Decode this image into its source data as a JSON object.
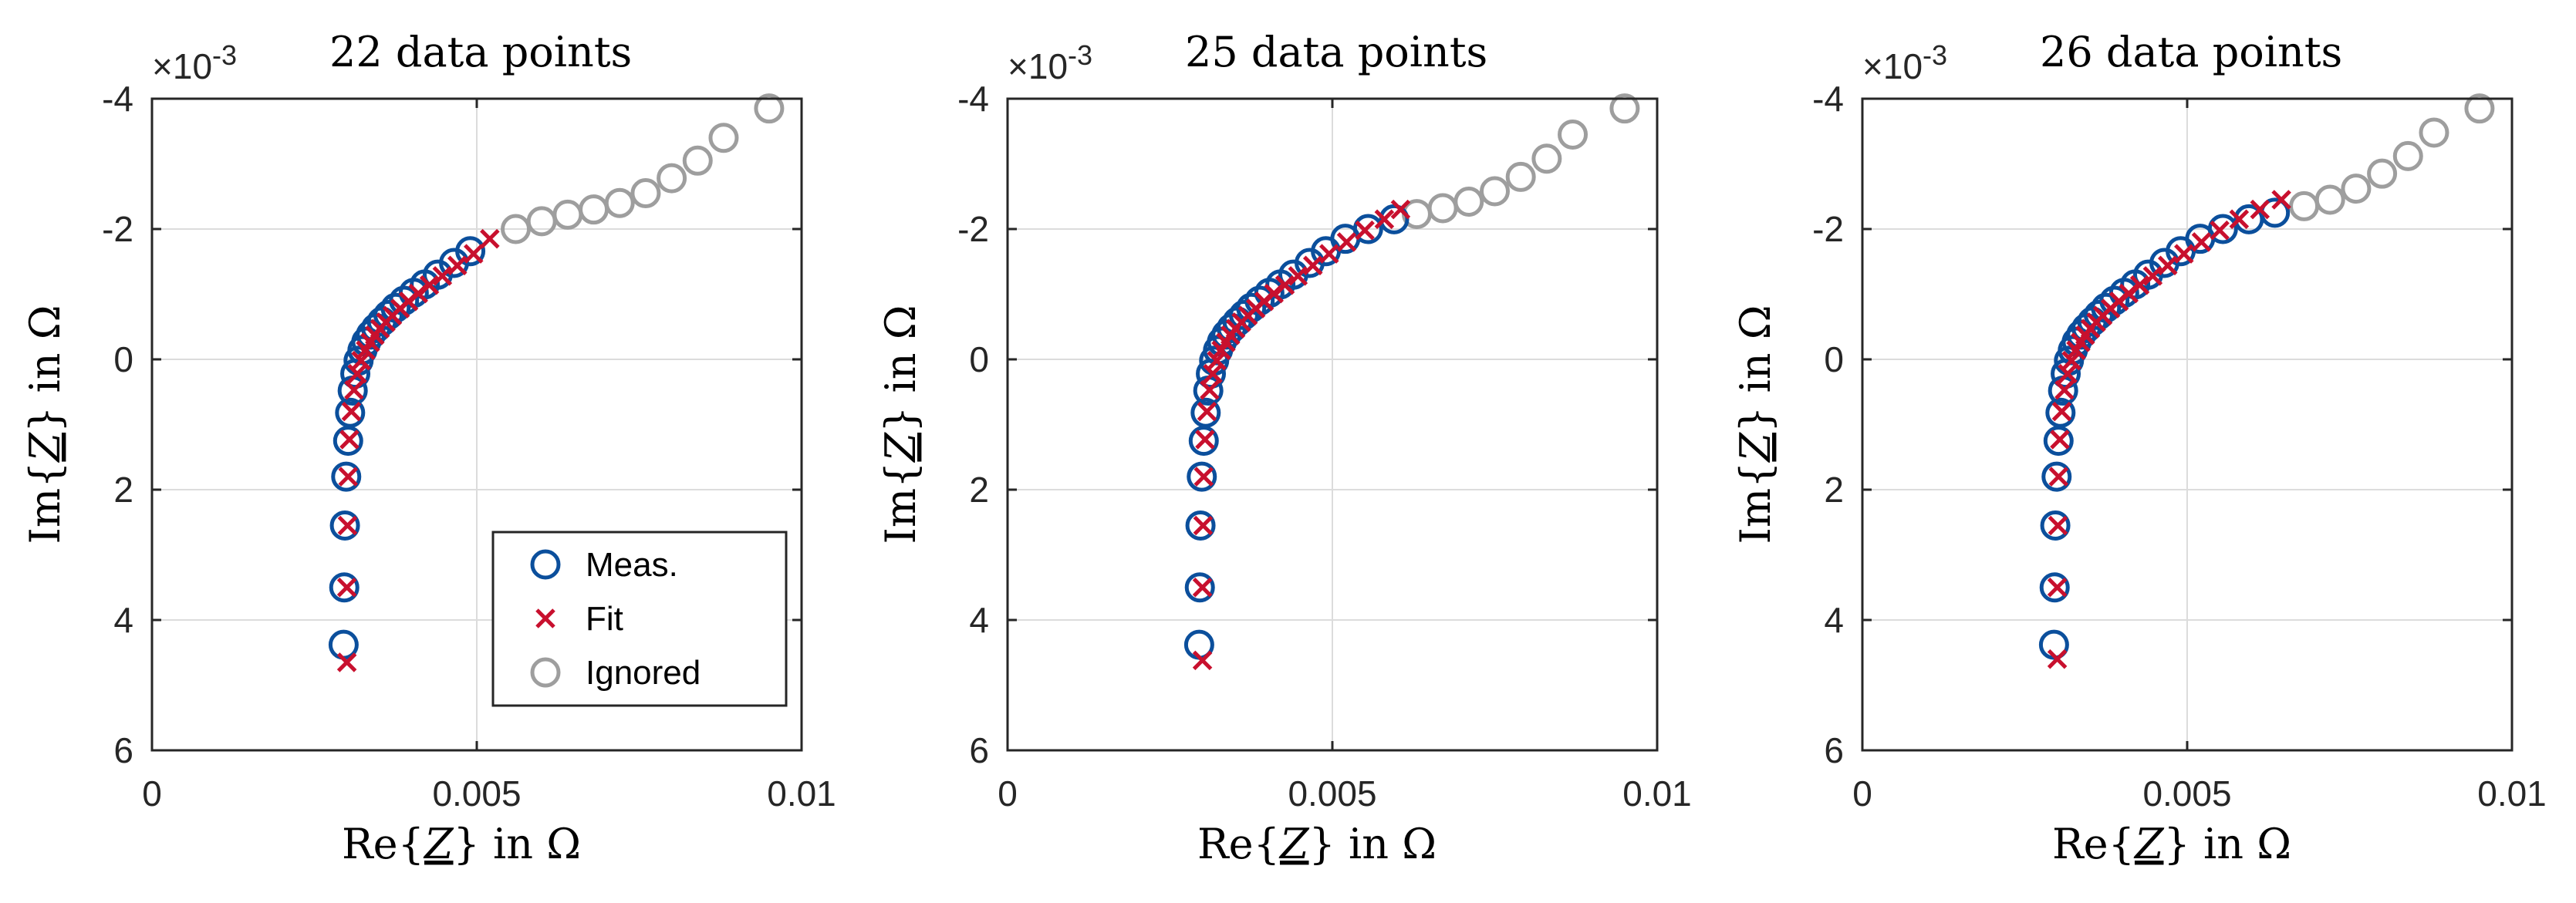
{
  "colors": {
    "measured": "#0b4f9c",
    "fit": "#c8102e",
    "ignored": "#9e9e9e",
    "grid": "#dcdcdc",
    "axis": "#262626"
  },
  "chart_data": [
    {
      "type": "scatter",
      "title": "22 data points",
      "xlabel": "Re{Z} in Ω",
      "ylabel": "Im{Z} in Ω",
      "exponent_label": "×10",
      "exponent_value": "-3",
      "xlim": [
        0,
        0.01
      ],
      "ylim": [
        -4,
        6
      ],
      "y_reversed": true,
      "x_ticks": [
        "0",
        "0.005",
        "0.01"
      ],
      "y_ticks": [
        "-4",
        "-2",
        "0",
        "2",
        "4",
        "6"
      ],
      "legend": {
        "position": "bottom-right",
        "entries": [
          "Meas.",
          "Fit",
          "Ignored"
        ]
      },
      "series": [
        {
          "name": "Meas.",
          "x": [
            0.00295,
            0.00296,
            0.00297,
            0.00299,
            0.00302,
            0.00305,
            0.00309,
            0.00313,
            0.00318,
            0.00324,
            0.0033,
            0.00337,
            0.00345,
            0.00354,
            0.00364,
            0.00375,
            0.00388,
            0.00403,
            0.0042,
            0.0044,
            0.00465,
            0.0049
          ],
          "y": [
            4.38,
            3.5,
            2.55,
            1.8,
            1.25,
            0.82,
            0.48,
            0.22,
            0.02,
            -0.14,
            -0.27,
            -0.38,
            -0.48,
            -0.58,
            -0.68,
            -0.79,
            -0.9,
            -1.02,
            -1.15,
            -1.3,
            -1.48,
            -1.66
          ]
        },
        {
          "name": "Fit",
          "x": [
            0.003,
            0.003,
            0.00301,
            0.00302,
            0.00304,
            0.00307,
            0.00311,
            0.00316,
            0.00322,
            0.00329,
            0.00336,
            0.00343,
            0.00351,
            0.0036,
            0.0037,
            0.00382,
            0.00395,
            0.0041,
            0.00427,
            0.00447,
            0.0047,
            0.00495,
            0.0052
          ],
          "y": [
            4.65,
            3.5,
            2.55,
            1.8,
            1.23,
            0.8,
            0.47,
            0.22,
            0.02,
            -0.14,
            -0.26,
            -0.37,
            -0.47,
            -0.57,
            -0.67,
            -0.78,
            -0.89,
            -1.01,
            -1.14,
            -1.28,
            -1.44,
            -1.62,
            -1.85
          ]
        },
        {
          "name": "Ignored",
          "x": [
            0.0056,
            0.006,
            0.0064,
            0.0068,
            0.0072,
            0.0076,
            0.008,
            0.0084,
            0.0088,
            0.0095
          ],
          "y": [
            -2.0,
            -2.12,
            -2.22,
            -2.3,
            -2.4,
            -2.55,
            -2.78,
            -3.05,
            -3.4,
            -3.85
          ]
        }
      ]
    },
    {
      "type": "scatter",
      "title": "25 data points",
      "xlabel": "Re{Z} in Ω",
      "ylabel": "Im{Z} in Ω",
      "exponent_label": "×10",
      "exponent_value": "-3",
      "xlim": [
        0,
        0.01
      ],
      "ylim": [
        -4,
        6
      ],
      "y_reversed": true,
      "x_ticks": [
        "0",
        "0.005",
        "0.01"
      ],
      "y_ticks": [
        "-4",
        "-2",
        "0",
        "2",
        "4",
        "6"
      ],
      "series": [
        {
          "name": "Meas.",
          "x": [
            0.00295,
            0.00296,
            0.00297,
            0.00299,
            0.00302,
            0.00305,
            0.00309,
            0.00313,
            0.00318,
            0.00324,
            0.0033,
            0.00337,
            0.00345,
            0.00354,
            0.00364,
            0.00375,
            0.00388,
            0.00403,
            0.0042,
            0.0044,
            0.00465,
            0.0049,
            0.0052,
            0.00555,
            0.00595
          ],
          "y": [
            4.38,
            3.5,
            2.55,
            1.8,
            1.25,
            0.82,
            0.48,
            0.22,
            0.02,
            -0.14,
            -0.27,
            -0.38,
            -0.48,
            -0.58,
            -0.68,
            -0.79,
            -0.9,
            -1.02,
            -1.15,
            -1.3,
            -1.48,
            -1.66,
            -1.85,
            -2.0,
            -2.15
          ]
        },
        {
          "name": "Fit",
          "x": [
            0.003,
            0.003,
            0.00301,
            0.00302,
            0.00304,
            0.00307,
            0.00311,
            0.00316,
            0.00322,
            0.00329,
            0.00336,
            0.00343,
            0.00351,
            0.0036,
            0.0037,
            0.00382,
            0.00395,
            0.0041,
            0.00427,
            0.00447,
            0.0047,
            0.00495,
            0.00522,
            0.0055,
            0.0058,
            0.00605
          ],
          "y": [
            4.62,
            3.5,
            2.55,
            1.8,
            1.23,
            0.8,
            0.47,
            0.22,
            0.02,
            -0.14,
            -0.26,
            -0.37,
            -0.47,
            -0.57,
            -0.67,
            -0.78,
            -0.89,
            -1.01,
            -1.14,
            -1.28,
            -1.44,
            -1.62,
            -1.8,
            -1.98,
            -2.15,
            -2.3
          ]
        },
        {
          "name": "Ignored",
          "x": [
            0.0063,
            0.0067,
            0.0071,
            0.0075,
            0.0079,
            0.0083,
            0.0087,
            0.0095
          ],
          "y": [
            -2.23,
            -2.32,
            -2.42,
            -2.58,
            -2.8,
            -3.08,
            -3.45,
            -3.85
          ]
        }
      ]
    },
    {
      "type": "scatter",
      "title": "26 data points",
      "xlabel": "Re{Z} in Ω",
      "ylabel": "Im{Z} in Ω",
      "exponent_label": "×10",
      "exponent_value": "-3",
      "xlim": [
        0,
        0.01
      ],
      "ylim": [
        -4,
        6
      ],
      "y_reversed": true,
      "x_ticks": [
        "0",
        "0.005",
        "0.01"
      ],
      "y_ticks": [
        "-4",
        "-2",
        "0",
        "2",
        "4",
        "6"
      ],
      "series": [
        {
          "name": "Meas.",
          "x": [
            0.00295,
            0.00296,
            0.00297,
            0.00299,
            0.00302,
            0.00305,
            0.00309,
            0.00313,
            0.00318,
            0.00324,
            0.0033,
            0.00337,
            0.00345,
            0.00354,
            0.00364,
            0.00375,
            0.00388,
            0.00403,
            0.0042,
            0.0044,
            0.00465,
            0.0049,
            0.0052,
            0.00555,
            0.00595,
            0.00635
          ],
          "y": [
            4.38,
            3.5,
            2.55,
            1.8,
            1.25,
            0.82,
            0.48,
            0.22,
            0.02,
            -0.14,
            -0.27,
            -0.38,
            -0.48,
            -0.58,
            -0.68,
            -0.79,
            -0.9,
            -1.02,
            -1.15,
            -1.3,
            -1.48,
            -1.66,
            -1.85,
            -2.0,
            -2.15,
            -2.25
          ]
        },
        {
          "name": "Fit",
          "x": [
            0.003,
            0.003,
            0.00301,
            0.00302,
            0.00304,
            0.00307,
            0.00311,
            0.00316,
            0.00322,
            0.00329,
            0.00336,
            0.00343,
            0.00351,
            0.0036,
            0.0037,
            0.00382,
            0.00395,
            0.0041,
            0.00427,
            0.00447,
            0.0047,
            0.00495,
            0.00522,
            0.0055,
            0.0058,
            0.00612,
            0.00645
          ],
          "y": [
            4.6,
            3.5,
            2.55,
            1.8,
            1.23,
            0.8,
            0.47,
            0.22,
            0.02,
            -0.14,
            -0.26,
            -0.37,
            -0.47,
            -0.57,
            -0.67,
            -0.78,
            -0.89,
            -1.01,
            -1.14,
            -1.28,
            -1.44,
            -1.62,
            -1.8,
            -1.98,
            -2.15,
            -2.3,
            -2.45
          ]
        },
        {
          "name": "Ignored",
          "x": [
            0.0068,
            0.0072,
            0.0076,
            0.008,
            0.0084,
            0.0088,
            0.0095
          ],
          "y": [
            -2.35,
            -2.45,
            -2.62,
            -2.85,
            -3.12,
            -3.48,
            -3.85
          ]
        }
      ]
    }
  ]
}
